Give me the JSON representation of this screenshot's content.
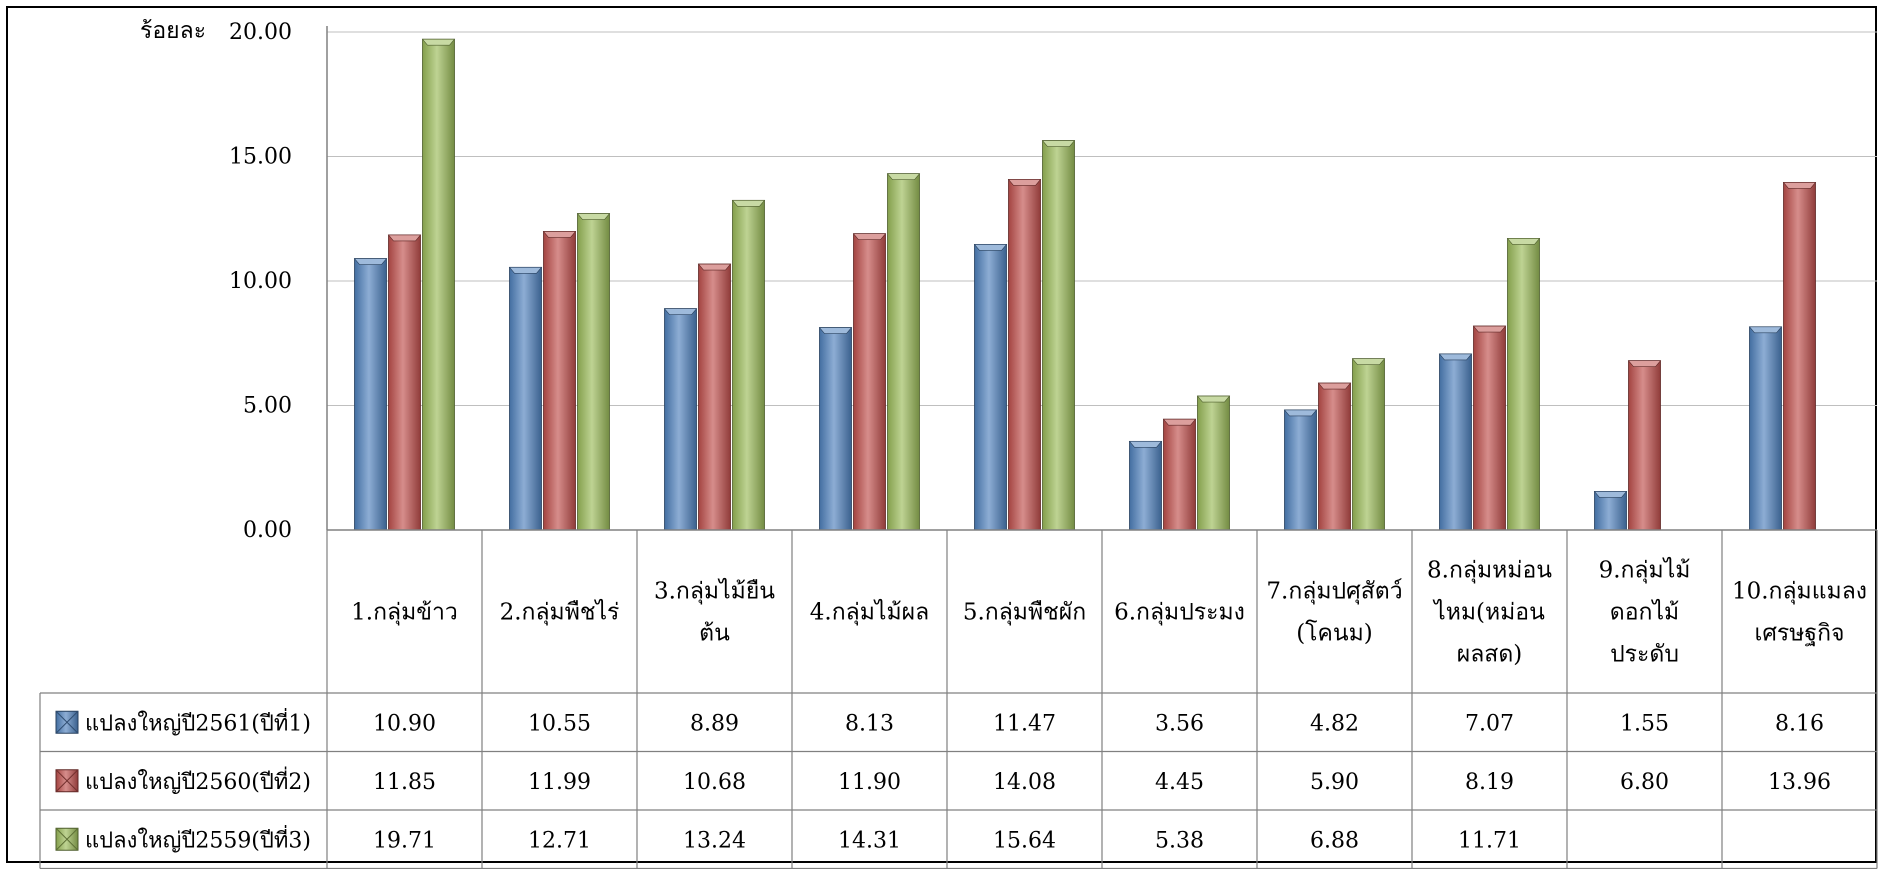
{
  "chart_data": {
    "type": "bar",
    "title": "",
    "ylabel": "ร้อยละ",
    "ylim": [
      0,
      20
    ],
    "yticks": [
      "0.00",
      "5.00",
      "10.00",
      "15.00",
      "20.00"
    ],
    "grid": true,
    "legend": "data-table-left",
    "categories": [
      [
        "1.กลุ่มข้าว"
      ],
      [
        "2.กลุ่มพืชไร่"
      ],
      [
        "3.กลุ่มไม้ยืน",
        "ต้น"
      ],
      [
        "4.กลุ่มไม้ผล"
      ],
      [
        "5.กลุ่มพืชผัก"
      ],
      [
        "6.กลุ่มประมง"
      ],
      [
        "7.กลุ่มปศุสัตว์",
        "(โคนม)"
      ],
      [
        "8.กลุ่มหม่อน",
        "ไหม(หม่อน",
        "ผลสด)"
      ],
      [
        "9.กลุ่มไม้",
        "ดอกไม้",
        "ประดับ"
      ],
      [
        "10.กลุ่มแมลง",
        "เศรษฐกิจ"
      ]
    ],
    "series": [
      {
        "name": "แปลงใหญ่ปี2561(ปีที่1)",
        "color": "#4f81bd",
        "values": [
          10.9,
          10.55,
          8.89,
          8.13,
          11.47,
          3.56,
          4.82,
          7.07,
          1.55,
          8.16
        ],
        "labels": [
          "10.90",
          "10.55",
          "8.89",
          "8.13",
          "11.47",
          "3.56",
          "4.82",
          "7.07",
          "1.55",
          "8.16"
        ]
      },
      {
        "name": "แปลงใหญ่ปี2560(ปีที่2)",
        "color": "#c0504d",
        "values": [
          11.85,
          11.99,
          10.68,
          11.9,
          14.08,
          4.45,
          5.9,
          8.19,
          6.8,
          13.96
        ],
        "labels": [
          "11.85",
          "11.99",
          "10.68",
          "11.90",
          "14.08",
          "4.45",
          "5.90",
          "8.19",
          "6.80",
          "13.96"
        ]
      },
      {
        "name": "แปลงใหญ่ปี2559(ปีที่3)",
        "color": "#9bbb59",
        "values": [
          19.71,
          12.71,
          13.24,
          14.31,
          15.64,
          5.38,
          6.88,
          11.71,
          null,
          null
        ],
        "labels": [
          "19.71",
          "12.71",
          "13.24",
          "14.31",
          "15.64",
          "5.38",
          "6.88",
          "11.71",
          "",
          ""
        ]
      }
    ]
  }
}
